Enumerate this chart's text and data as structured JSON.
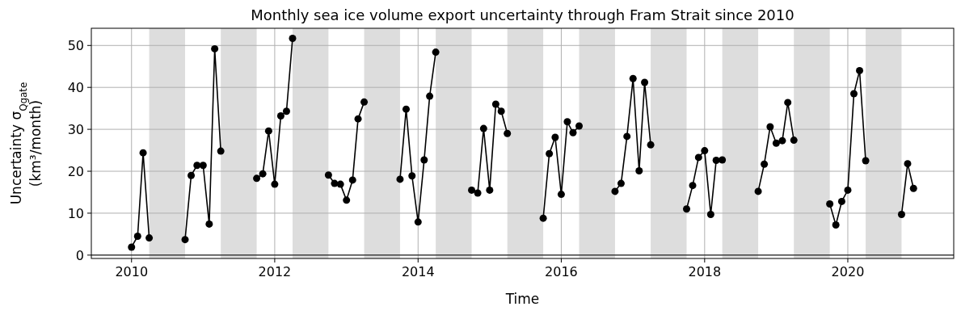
{
  "chart_data": {
    "type": "line",
    "title": "Monthly sea ice volume export uncertainty through Fram Strait since 2010",
    "xlabel": "Time",
    "ylabel": "Uncertainty σ$_{Qgate}$\n(km³/month)",
    "xlim": [
      "2009-06-10",
      "2021-06-24"
    ],
    "ylim": [
      -0.8,
      54.1
    ],
    "xticks": [
      {
        "value": "2010",
        "label": "2010"
      },
      {
        "value": "2012",
        "label": "2012"
      },
      {
        "value": "2014",
        "label": "2014"
      },
      {
        "value": "2016",
        "label": "2016"
      },
      {
        "value": "2018",
        "label": "2018"
      },
      {
        "value": "2020",
        "label": "2020"
      }
    ],
    "yticks": [
      0,
      10,
      20,
      30,
      40,
      50
    ],
    "grid": true,
    "marker": "circle",
    "line_style": "solid",
    "ref_lines": [
      {
        "axis": "y",
        "value": 0,
        "color": "#000000"
      }
    ],
    "bands": [
      {
        "axis": "x",
        "from": "2010-04-01",
        "to": "2010-10-01",
        "color": "#dddddd"
      },
      {
        "axis": "x",
        "from": "2011-04-01",
        "to": "2011-10-01",
        "color": "#dddddd"
      },
      {
        "axis": "x",
        "from": "2012-04-01",
        "to": "2012-10-01",
        "color": "#dddddd"
      },
      {
        "axis": "x",
        "from": "2013-04-01",
        "to": "2013-10-01",
        "color": "#dddddd"
      },
      {
        "axis": "x",
        "from": "2014-04-01",
        "to": "2014-10-01",
        "color": "#dddddd"
      },
      {
        "axis": "x",
        "from": "2015-04-01",
        "to": "2015-10-01",
        "color": "#dddddd"
      },
      {
        "axis": "x",
        "from": "2016-04-01",
        "to": "2016-10-01",
        "color": "#dddddd"
      },
      {
        "axis": "x",
        "from": "2017-04-01",
        "to": "2017-10-01",
        "color": "#dddddd"
      },
      {
        "axis": "x",
        "from": "2018-04-01",
        "to": "2018-10-01",
        "color": "#dddddd"
      },
      {
        "axis": "x",
        "from": "2019-04-01",
        "to": "2019-10-01",
        "color": "#dddddd"
      },
      {
        "axis": "x",
        "from": "2020-04-01",
        "to": "2020-10-01",
        "color": "#dddddd"
      }
    ],
    "series": [
      {
        "color": "#000000",
        "x": [
          "2010-01",
          "2010-02",
          "2010-03",
          "2010-04"
        ],
        "values": [
          1.9,
          4.5,
          24.4,
          4.1
        ]
      },
      {
        "color": "#000000",
        "x": [
          "2010-10",
          "2010-11",
          "2010-12",
          "2011-01",
          "2011-02",
          "2011-03",
          "2011-04"
        ],
        "values": [
          3.7,
          19.0,
          21.4,
          21.4,
          7.4,
          49.2,
          24.8
        ]
      },
      {
        "color": "#000000",
        "x": [
          "2011-10",
          "2011-11",
          "2011-12",
          "2012-01",
          "2012-02",
          "2012-03",
          "2012-04"
        ],
        "values": [
          18.3,
          19.4,
          29.6,
          16.9,
          33.2,
          34.3,
          51.7
        ]
      },
      {
        "color": "#000000",
        "x": [
          "2012-10",
          "2012-11",
          "2012-12",
          "2013-01",
          "2013-02",
          "2013-03",
          "2013-04"
        ],
        "values": [
          19.1,
          17.1,
          16.9,
          13.1,
          17.9,
          32.5,
          36.5
        ]
      },
      {
        "color": "#000000",
        "x": [
          "2013-10",
          "2013-11",
          "2013-12",
          "2014-01",
          "2014-02",
          "2014-03",
          "2014-04"
        ],
        "values": [
          18.1,
          34.8,
          18.9,
          7.9,
          22.7,
          37.9,
          48.4
        ]
      },
      {
        "color": "#000000",
        "x": [
          "2014-10",
          "2014-11",
          "2014-12",
          "2015-01",
          "2015-02",
          "2015-03",
          "2015-04"
        ],
        "values": [
          15.5,
          14.8,
          30.2,
          15.5,
          36.0,
          34.3,
          29.0
        ]
      },
      {
        "color": "#000000",
        "x": [
          "2015-10",
          "2015-11",
          "2015-12",
          "2016-01",
          "2016-02",
          "2016-03",
          "2016-04"
        ],
        "values": [
          8.8,
          24.2,
          28.1,
          14.5,
          31.8,
          29.2,
          30.8
        ]
      },
      {
        "color": "#000000",
        "x": [
          "2016-10",
          "2016-11",
          "2016-12",
          "2017-01",
          "2017-02",
          "2017-03",
          "2017-04"
        ],
        "values": [
          15.2,
          17.1,
          28.3,
          42.1,
          20.1,
          41.2,
          26.3
        ]
      },
      {
        "color": "#000000",
        "x": [
          "2017-10",
          "2017-11",
          "2017-12",
          "2018-01",
          "2018-02",
          "2018-03",
          "2018-04"
        ],
        "values": [
          11.0,
          16.6,
          23.3,
          24.9,
          9.7,
          22.6,
          22.7
        ]
      },
      {
        "color": "#000000",
        "x": [
          "2018-10",
          "2018-11",
          "2018-12",
          "2019-01",
          "2019-02",
          "2019-03",
          "2019-04"
        ],
        "values": [
          15.2,
          21.7,
          30.6,
          26.7,
          27.3,
          36.4,
          27.4
        ]
      },
      {
        "color": "#000000",
        "x": [
          "2019-10",
          "2019-11",
          "2019-12",
          "2020-01",
          "2020-02",
          "2020-03",
          "2020-04"
        ],
        "values": [
          12.2,
          7.2,
          12.8,
          15.5,
          38.5,
          44.0,
          22.5
        ]
      },
      {
        "color": "#000000",
        "x": [
          "2020-10",
          "2020-11",
          "2020-12"
        ],
        "values": [
          9.7,
          21.8,
          15.9
        ]
      }
    ]
  }
}
